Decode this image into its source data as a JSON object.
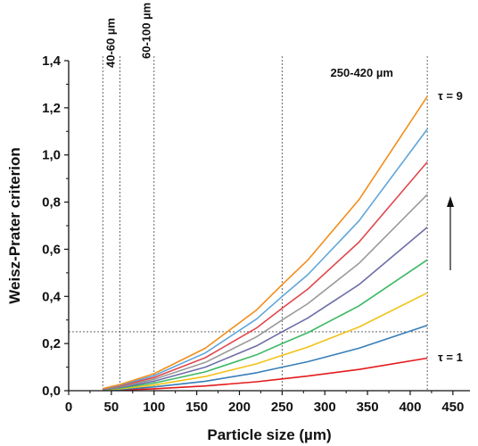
{
  "chart_data": {
    "type": "line",
    "title": "",
    "xlabel": "Particle size (µm)",
    "ylabel": "Weisz-Prater criterion",
    "xlim": [
      0,
      470
    ],
    "ylim": [
      0,
      1.4
    ],
    "x_ticks": [
      0,
      50,
      100,
      150,
      200,
      250,
      300,
      350,
      400,
      450
    ],
    "x_tick_labels": [
      "0",
      "50",
      "100",
      "150",
      "200",
      "250",
      "300",
      "350",
      "400",
      "450"
    ],
    "y_ticks": [
      0,
      0.2,
      0.4,
      0.6,
      0.8,
      1.0,
      1.2,
      1.4
    ],
    "y_tick_labels": [
      "0,0",
      "0,2",
      "0,4",
      "0,6",
      "0,8",
      "1,0",
      "1,2",
      "1,4"
    ],
    "grid": false,
    "x": [
      40,
      60,
      100,
      160,
      220,
      250,
      280,
      340,
      420
    ],
    "series": [
      {
        "color": "#e41a1c",
        "values": [
          0.001,
          0.003,
          0.008,
          0.02,
          0.038,
          0.05,
          0.062,
          0.09,
          0.138
        ]
      },
      {
        "color": "#377eb8",
        "values": [
          0.002,
          0.005,
          0.016,
          0.04,
          0.076,
          0.1,
          0.123,
          0.18,
          0.277
        ]
      },
      {
        "color": "#f2c218",
        "values": [
          0.003,
          0.008,
          0.024,
          0.06,
          0.114,
          0.15,
          0.185,
          0.27,
          0.415
        ]
      },
      {
        "color": "#3cb864",
        "values": [
          0.004,
          0.011,
          0.032,
          0.08,
          0.152,
          0.2,
          0.246,
          0.36,
          0.555
        ]
      },
      {
        "color": "#6e6ea8",
        "values": [
          0.005,
          0.014,
          0.04,
          0.1,
          0.19,
          0.25,
          0.308,
          0.45,
          0.693
        ]
      },
      {
        "color": "#9a9a9a",
        "values": [
          0.006,
          0.017,
          0.048,
          0.12,
          0.228,
          0.3,
          0.369,
          0.54,
          0.832
        ]
      },
      {
        "color": "#e0474c",
        "values": [
          0.007,
          0.02,
          0.056,
          0.14,
          0.266,
          0.35,
          0.431,
          0.63,
          0.97
        ]
      },
      {
        "color": "#5da5da",
        "values": [
          0.008,
          0.023,
          0.064,
          0.16,
          0.304,
          0.4,
          0.492,
          0.72,
          1.109
        ]
      },
      {
        "color": "#f28e1c",
        "values": [
          0.009,
          0.026,
          0.072,
          0.18,
          0.342,
          0.45,
          0.554,
          0.81,
          1.248
        ]
      }
    ],
    "reference_lines": {
      "vertical_x": [
        40,
        60,
        100,
        250,
        420
      ],
      "horizontal_y": 0.25
    },
    "annotations": {
      "range_40_60": "40-60 µm",
      "range_60_100": "60-100 µm",
      "range_250_420": "250-420 µm",
      "tau_top": "τ = 9",
      "tau_bottom": "τ = 1"
    }
  }
}
